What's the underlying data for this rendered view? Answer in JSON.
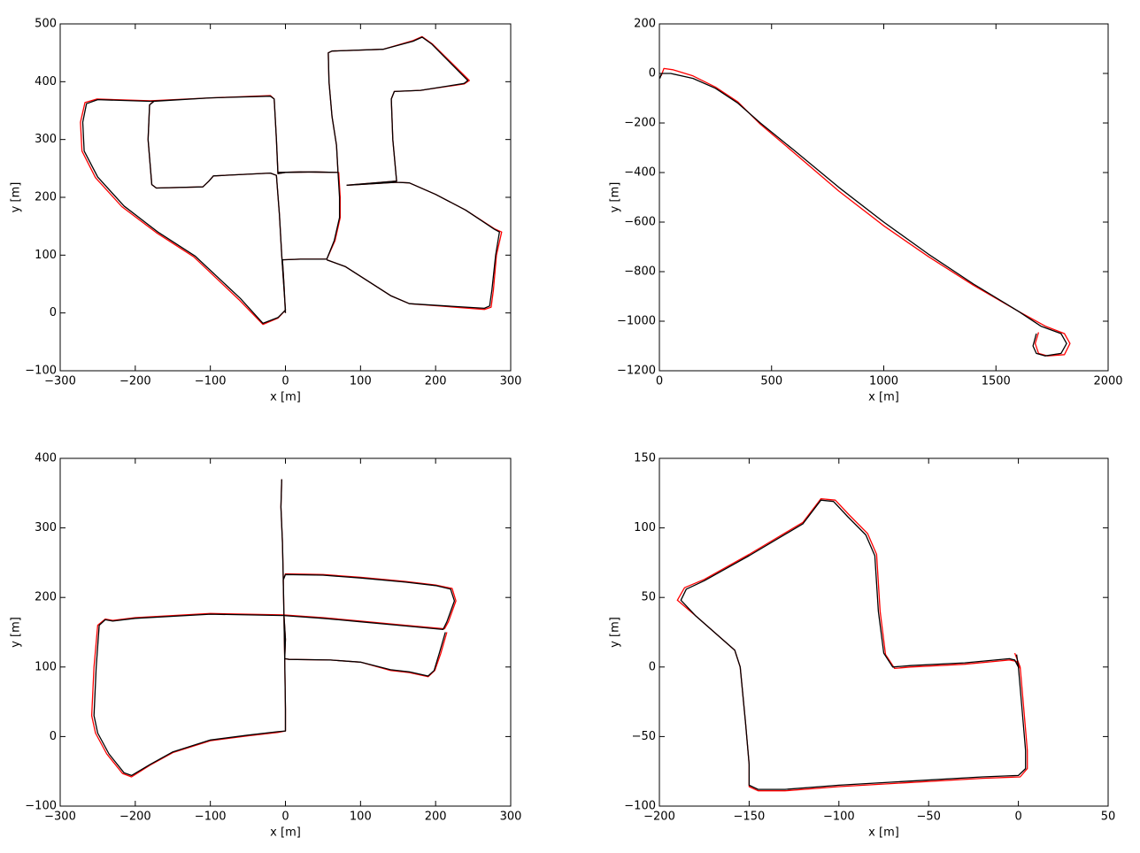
{
  "chart_data": [
    {
      "type": "line",
      "xlabel": "x [m]",
      "ylabel": "y [m]",
      "xlim": [
        -300,
        300
      ],
      "ylim": [
        -100,
        500
      ],
      "xticks": [
        {
          "value": -300,
          "label": "−300"
        },
        {
          "value": -200,
          "label": "−200"
        },
        {
          "value": -100,
          "label": "−100"
        },
        0,
        100,
        200,
        300
      ],
      "yticks": [
        {
          "value": -100,
          "label": "−100"
        },
        0,
        100,
        200,
        300,
        400,
        500
      ],
      "series": [
        {
          "color": "#ff0000",
          "x": [
            0,
            -2,
            -4,
            20,
            55,
            66,
            73,
            73,
            71,
            40,
            0,
            -10,
            -12,
            -15,
            -20,
            -100,
            -175,
            -181,
            -183,
            -178,
            -172,
            -110,
            -102,
            -96,
            -20,
            -12,
            -8,
            -5,
            0,
            -10,
            -30,
            -62,
            -122,
            -172,
            -218,
            -253,
            -271,
            -273,
            -267,
            -251,
            -180,
            -100,
            -20,
            -15,
            -12,
            -10,
            20,
            70,
            68,
            62,
            58,
            57,
            62,
            130,
            170,
            182,
            196,
            245,
            238,
            180,
            145,
            141,
            143,
            148,
            82,
            148,
            165,
            200,
            240,
            279,
            288,
            281,
            277,
            274,
            265,
            165,
            140,
            110,
            80,
            55
          ],
          "values": [
            0,
            50,
            92,
            93,
            93,
            125,
            165,
            200,
            243,
            244,
            243,
            241,
            300,
            370,
            376,
            372,
            367,
            360,
            300,
            222,
            216,
            218,
            228,
            237,
            242,
            238,
            170,
            100,
            5,
            -9,
            -20,
            23,
            97,
            139,
            184,
            234,
            280,
            330,
            364,
            370,
            367,
            372,
            376,
            370,
            300,
            243,
            244,
            243,
            290,
            340,
            400,
            450,
            453,
            456,
            471,
            478,
            465,
            402,
            396,
            385,
            383,
            370,
            300,
            228,
            221,
            226,
            225,
            205,
            178,
            145,
            140,
            100,
            40,
            10,
            6,
            16,
            30,
            55,
            80,
            92
          ]
        },
        {
          "color": "#000000",
          "x": [
            0,
            -2,
            -4,
            20,
            55,
            65,
            72,
            72,
            70,
            40,
            0,
            -10,
            -12,
            -15,
            -20,
            -100,
            -175,
            -181,
            -183,
            -178,
            -172,
            -110,
            -102,
            -96,
            -20,
            -12,
            -8,
            -5,
            0,
            -10,
            -30,
            -60,
            -120,
            -170,
            -215,
            -250,
            -268,
            -270,
            -265,
            -250,
            -180,
            -100,
            -20,
            -15,
            -12,
            -10,
            20,
            70,
            68,
            62,
            58,
            57,
            62,
            130,
            170,
            182,
            195,
            243,
            238,
            180,
            145,
            141,
            143,
            148,
            82,
            148,
            165,
            200,
            240,
            278,
            285,
            280,
            275,
            272,
            265,
            165,
            140,
            110,
            80,
            55
          ],
          "values": [
            0,
            50,
            92,
            93,
            93,
            125,
            165,
            200,
            243,
            244,
            243,
            241,
            300,
            370,
            375,
            372,
            366,
            360,
            300,
            222,
            216,
            218,
            228,
            237,
            242,
            238,
            170,
            100,
            5,
            -8,
            -18,
            25,
            98,
            140,
            185,
            235,
            280,
            330,
            362,
            369,
            366,
            372,
            375,
            370,
            300,
            243,
            244,
            243,
            290,
            340,
            400,
            450,
            453,
            456,
            470,
            477,
            465,
            402,
            397,
            385,
            383,
            370,
            300,
            228,
            221,
            226,
            225,
            205,
            178,
            145,
            140,
            100,
            40,
            12,
            8,
            16,
            30,
            55,
            80,
            92
          ]
        }
      ]
    },
    {
      "type": "line",
      "xlabel": "x [m]",
      "ylabel": "y [m]",
      "xlim": [
        0,
        2000
      ],
      "ylim": [
        -1200,
        200
      ],
      "xticks": [
        0,
        500,
        1000,
        1500,
        2000
      ],
      "yticks": [
        {
          "value": -1200,
          "label": "−1200"
        },
        {
          "value": -1000,
          "label": "−1000"
        },
        {
          "value": -800,
          "label": "−800"
        },
        {
          "value": -600,
          "label": "−600"
        },
        {
          "value": -400,
          "label": "−400"
        },
        {
          "value": -200,
          "label": "−200"
        },
        0,
        200
      ],
      "series": [
        {
          "color": "#ff0000",
          "x": [
            8,
            20,
            60,
            150,
            250,
            350,
            450,
            600,
            800,
            1000,
            1200,
            1400,
            1600,
            1720,
            1805,
            1830,
            1805,
            1730,
            1690,
            1675,
            1690
          ],
          "values": [
            -10,
            20,
            15,
            -10,
            -55,
            -115,
            -205,
            -320,
            -475,
            -615,
            -740,
            -855,
            -960,
            -1020,
            -1050,
            -1090,
            -1135,
            -1140,
            -1130,
            -1090,
            -1045
          ]
        },
        {
          "color": "#000000",
          "x": [
            2,
            10,
            50,
            150,
            250,
            350,
            450,
            600,
            800,
            1000,
            1200,
            1400,
            1600,
            1700,
            1790,
            1815,
            1790,
            1720,
            1680,
            1665,
            1680
          ],
          "values": [
            -20,
            0,
            0,
            -20,
            -60,
            -120,
            -200,
            -310,
            -460,
            -600,
            -730,
            -850,
            -960,
            -1020,
            -1050,
            -1090,
            -1130,
            -1140,
            -1130,
            -1100,
            -1050
          ]
        }
      ]
    },
    {
      "type": "line",
      "xlabel": "x [m]",
      "ylabel": "y [m]",
      "xlim": [
        -300,
        300
      ],
      "ylim": [
        -100,
        400
      ],
      "xticks": [
        {
          "value": -300,
          "label": "−300"
        },
        {
          "value": -200,
          "label": "−200"
        },
        {
          "value": -100,
          "label": "−100"
        },
        0,
        100,
        200,
        300
      ],
      "yticks": [
        {
          "value": -100,
          "label": "−100"
        },
        0,
        100,
        200,
        300,
        400
      ],
      "series": [
        {
          "color": "#ff0000",
          "x": [
            -5,
            -6,
            -4,
            -3,
            -2,
            -1,
            0,
            0,
            -10,
            -50,
            -100,
            -150,
            -180,
            -205,
            -217,
            -238,
            -253,
            -258,
            -255,
            -250,
            -240,
            -230,
            -200,
            -100,
            -3,
            50,
            100,
            150,
            212,
            217,
            227,
            222,
            200,
            160,
            100,
            50,
            0,
            -3,
            -2,
            0,
            -1,
            5,
            60,
            100,
            140,
            165,
            190,
            199,
            207,
            215
          ],
          "values": [
            370,
            330,
            280,
            230,
            175,
            110,
            40,
            8,
            6,
            1,
            -6,
            -23,
            -41,
            -58,
            -53,
            -25,
            5,
            30,
            100,
            160,
            169,
            167,
            171,
            177,
            175,
            171,
            166,
            161,
            155,
            165,
            195,
            213,
            218,
            223,
            229,
            233,
            234,
            225,
            175,
            140,
            112,
            111,
            110,
            107,
            95,
            92,
            86,
            95,
            120,
            150
          ]
        },
        {
          "color": "#000000",
          "x": [
            -5,
            -6,
            -4,
            -3,
            -2,
            -1,
            0,
            0,
            -10,
            -50,
            -100,
            -150,
            -180,
            -205,
            -215,
            -235,
            -250,
            -255,
            -252,
            -248,
            -240,
            -230,
            -200,
            -100,
            -3,
            50,
            100,
            150,
            210,
            215,
            225,
            220,
            200,
            160,
            100,
            50,
            0,
            -3,
            -2,
            0,
            -1,
            5,
            60,
            100,
            140,
            165,
            190,
            198,
            205,
            213
          ],
          "values": [
            370,
            330,
            280,
            230,
            175,
            110,
            40,
            8,
            7,
            2,
            -5,
            -22,
            -40,
            -56,
            -52,
            -25,
            5,
            30,
            100,
            160,
            168,
            166,
            170,
            176,
            174,
            170,
            165,
            160,
            154,
            165,
            195,
            212,
            217,
            222,
            228,
            232,
            233,
            225,
            175,
            140,
            112,
            111,
            110,
            107,
            96,
            93,
            87,
            95,
            120,
            150
          ]
        }
      ]
    },
    {
      "type": "line",
      "xlabel": "x [m]",
      "ylabel": "y [m]",
      "xlim": [
        -200,
        50
      ],
      "ylim": [
        -100,
        150
      ],
      "xticks": [
        {
          "value": -200,
          "label": "−200"
        },
        {
          "value": -150,
          "label": "−150"
        },
        {
          "value": -100,
          "label": "−100"
        },
        {
          "value": -50,
          "label": "−50"
        },
        0,
        50
      ],
      "yticks": [
        {
          "value": -100,
          "label": "−100"
        },
        {
          "value": -50,
          "label": "−50"
        },
        0,
        50,
        100,
        150
      ],
      "series": [
        {
          "color": "#ff0000",
          "x": [
            -2,
            1,
            3,
            5,
            5,
            1,
            -20,
            -60,
            -100,
            -130,
            -145,
            -150,
            -150,
            -152,
            -155,
            -158,
            -165,
            -180,
            -190,
            -186,
            -175,
            -150,
            -120,
            -110,
            -102,
            -94,
            -84,
            -79,
            -77,
            -74,
            -69,
            -60,
            -30,
            -5,
            -1,
            1
          ],
          "values": [
            10,
            0,
            -30,
            -60,
            -73,
            -79,
            -80,
            -83,
            -86,
            -89,
            -89,
            -86,
            -70,
            -40,
            0,
            12,
            20,
            37,
            48,
            57,
            63,
            81,
            104,
            121,
            120,
            109,
            96,
            81,
            40,
            9,
            -1,
            0,
            2,
            5,
            4,
            -1
          ]
        },
        {
          "color": "#000000",
          "x": [
            -1,
            0,
            2,
            4,
            4,
            0,
            -20,
            -60,
            -100,
            -130,
            -145,
            -150,
            -150,
            -152,
            -155,
            -158,
            -165,
            -180,
            -188,
            -185,
            -175,
            -150,
            -120,
            -110,
            -103,
            -95,
            -85,
            -80,
            -78,
            -75,
            -70,
            -60,
            -30,
            -5,
            -2,
            0
          ],
          "values": [
            9,
            0,
            -30,
            -60,
            -73,
            -78,
            -79,
            -82,
            -85,
            -88,
            -88,
            -85,
            -70,
            -40,
            0,
            12,
            20,
            37,
            48,
            56,
            62,
            80,
            103,
            120,
            119,
            108,
            95,
            80,
            40,
            10,
            0,
            1,
            3,
            6,
            5,
            0
          ]
        }
      ]
    }
  ]
}
